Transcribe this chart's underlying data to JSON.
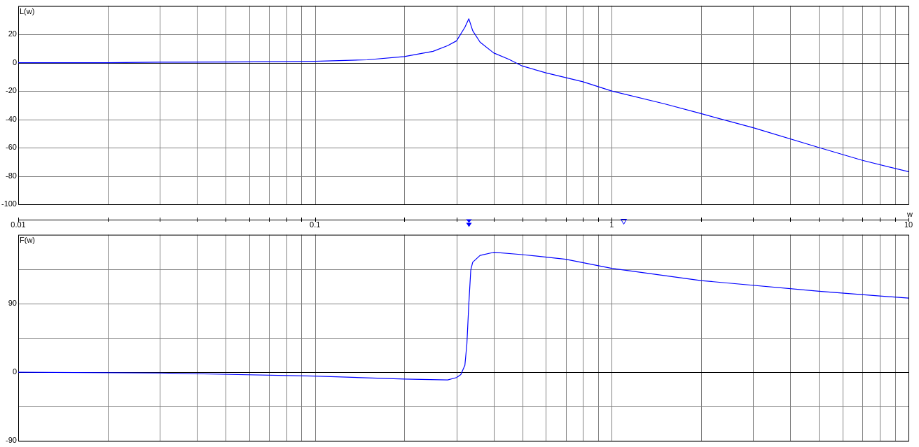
{
  "chart_data": [
    {
      "type": "line",
      "ylabel": "L(w)",
      "xlabel": "w",
      "log": "x",
      "grid": true,
      "marker": "none",
      "line_style": "solid",
      "xlim": [
        0.01,
        10
      ],
      "xticks": [
        0.01,
        0.1,
        1,
        10
      ],
      "ylim": [
        -100,
        40
      ],
      "yticks": [
        -100,
        -80,
        -60,
        -40,
        -20,
        0,
        20
      ],
      "series": [
        {
          "color": "#0000ff",
          "x": [
            0.01,
            0.02,
            0.03,
            0.05,
            0.08,
            0.1,
            0.15,
            0.2,
            0.25,
            0.28,
            0.3,
            0.32,
            0.33,
            0.34,
            0.36,
            0.4,
            0.45,
            0.5,
            0.6,
            0.8,
            1,
            1.5,
            2,
            3,
            5,
            7,
            10
          ],
          "values": [
            0,
            0,
            0.3,
            0.5,
            0.7,
            1,
            2,
            4.3,
            8,
            12,
            15.4,
            25,
            31,
            22.6,
            14.5,
            6.9,
            2.4,
            -2.4,
            -7.2,
            -13.5,
            -20,
            -29,
            -36,
            -46,
            -60,
            -69,
            -77
          ]
        }
      ]
    },
    {
      "type": "line",
      "ylabel": "F(w)",
      "log": "x",
      "grid": true,
      "marker": "none",
      "line_style": "solid",
      "tick_labels": "y",
      "xlim": [
        0.01,
        10
      ],
      "xticks": [
        0.01,
        0.1,
        1,
        10
      ],
      "ylim": [
        -90,
        180
      ],
      "yticks": [
        -90,
        {
          "value": -45,
          "label": null
        },
        0,
        {
          "value": 45,
          "label": null
        },
        90,
        {
          "value": 135,
          "label": null
        }
      ],
      "series": [
        {
          "color": "#0000ff",
          "x": [
            0.01,
            0.03,
            0.1,
            0.2,
            0.28,
            0.3,
            0.31,
            0.32,
            0.325,
            0.33,
            0.335,
            0.34,
            0.36,
            0.4,
            0.5,
            0.7,
            1,
            2,
            5,
            10
          ],
          "values": [
            0,
            -1,
            -5,
            -9,
            -10,
            -7,
            -3,
            9,
            37,
            90,
            134,
            144,
            153,
            157,
            154,
            148,
            136,
            120,
            106,
            97
          ]
        }
      ]
    }
  ]
}
